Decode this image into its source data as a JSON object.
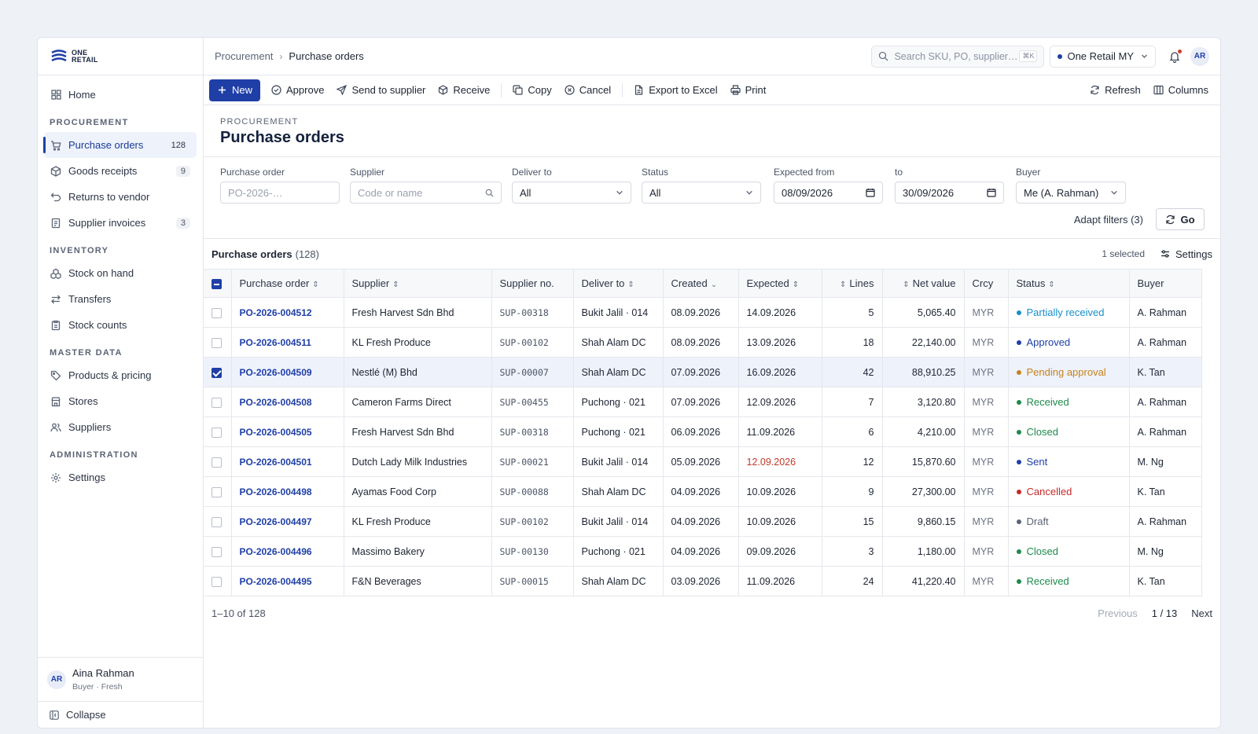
{
  "brand": {
    "line1": "ONE",
    "line2": "RETAIL"
  },
  "sidebar": {
    "home": "Home",
    "sections": {
      "procurement": "PROCUREMENT",
      "inventory": "INVENTORY",
      "master_data": "MASTER DATA",
      "administration": "ADMINISTRATION"
    },
    "items": {
      "purchase_orders": {
        "label": "Purchase orders",
        "badge": "128"
      },
      "goods_receipts": {
        "label": "Goods receipts",
        "badge": "9"
      },
      "returns": {
        "label": "Returns to vendor"
      },
      "supplier_invoices": {
        "label": "Supplier invoices",
        "badge": "3"
      },
      "stock_on_hand": {
        "label": "Stock on hand"
      },
      "transfers": {
        "label": "Transfers"
      },
      "stock_counts": {
        "label": "Stock counts"
      },
      "products": {
        "label": "Products & pricing"
      },
      "stores": {
        "label": "Stores"
      },
      "suppliers": {
        "label": "Suppliers"
      },
      "settings": {
        "label": "Settings"
      }
    },
    "user": {
      "initials": "AR",
      "name": "Aina Rahman",
      "role": "Buyer · Fresh"
    },
    "collapse": "Collapse"
  },
  "topbar": {
    "breadcrumb": [
      "Procurement",
      "Purchase orders"
    ],
    "search_placeholder": "Search SKU, PO, supplier…",
    "search_shortcut": "⌘K",
    "tenant": "One Retail MY",
    "avatar": "AR"
  },
  "toolbar": {
    "new": "New",
    "approve": "Approve",
    "send": "Send to supplier",
    "receive": "Receive",
    "copy": "Copy",
    "cancel": "Cancel",
    "export": "Export to Excel",
    "print": "Print",
    "refresh": "Refresh",
    "columns": "Columns"
  },
  "header": {
    "eyebrow": "PROCUREMENT",
    "title": "Purchase orders"
  },
  "filters": {
    "po_label": "Purchase order",
    "po_placeholder": "PO-2026-…",
    "supplier_label": "Supplier",
    "supplier_placeholder": "Code or name",
    "deliver_label": "Deliver to",
    "deliver_value": "All",
    "status_label": "Status",
    "status_value": "All",
    "from_label": "Expected from",
    "from_value": "08/09/2026",
    "to_label": "to",
    "to_value": "30/09/2026",
    "buyer_label": "Buyer",
    "buyer_value": "Me (A. Rahman)",
    "adapt": "Adapt filters (3)",
    "go": "Go"
  },
  "table": {
    "title": "Purchase orders",
    "count": "(128)",
    "selected": "1 selected",
    "settings": "Settings",
    "columns": [
      "Purchase order",
      "Supplier",
      "Supplier no.",
      "Deliver to",
      "Created",
      "Expected",
      "Lines",
      "Net value",
      "Crcy",
      "Status",
      "Buyer"
    ],
    "rows": [
      {
        "po": "PO-2026-004512",
        "supplier": "Fresh Harvest Sdn Bhd",
        "supno": "SUP-00318",
        "deliver": "Bukit Jalil · 014",
        "created": "08.09.2026",
        "expected": "14.09.2026",
        "lines": "5",
        "net": "5,065.40",
        "crcy": "MYR",
        "status": "Partially received",
        "status_color": "#1a8fc9",
        "buyer": "A. Rahman",
        "checked": false,
        "overdue": false
      },
      {
        "po": "PO-2026-004511",
        "supplier": "KL Fresh Produce",
        "supno": "SUP-00102",
        "deliver": "Shah Alam DC",
        "created": "08.09.2026",
        "expected": "13.09.2026",
        "lines": "18",
        "net": "22,140.00",
        "crcy": "MYR",
        "status": "Approved",
        "status_color": "#1f3fa6",
        "buyer": "A. Rahman",
        "checked": false,
        "overdue": false
      },
      {
        "po": "PO-2026-004509",
        "supplier": "Nestlé (M) Bhd",
        "supno": "SUP-00007",
        "deliver": "Shah Alam DC",
        "created": "07.09.2026",
        "expected": "16.09.2026",
        "lines": "42",
        "net": "88,910.25",
        "crcy": "MYR",
        "status": "Pending approval",
        "status_color": "#c9821a",
        "buyer": "K. Tan",
        "checked": true,
        "overdue": false
      },
      {
        "po": "PO-2026-004508",
        "supplier": "Cameron Farms Direct",
        "supno": "SUP-00455",
        "deliver": "Puchong · 021",
        "created": "07.09.2026",
        "expected": "12.09.2026",
        "lines": "7",
        "net": "3,120.80",
        "crcy": "MYR",
        "status": "Received",
        "status_color": "#1e8a4c",
        "buyer": "A. Rahman",
        "checked": false,
        "overdue": false
      },
      {
        "po": "PO-2026-004505",
        "supplier": "Fresh Harvest Sdn Bhd",
        "supno": "SUP-00318",
        "deliver": "Puchong · 021",
        "created": "06.09.2026",
        "expected": "11.09.2026",
        "lines": "6",
        "net": "4,210.00",
        "crcy": "MYR",
        "status": "Closed",
        "status_color": "#1e8a4c",
        "buyer": "A. Rahman",
        "checked": false,
        "overdue": false
      },
      {
        "po": "PO-2026-004501",
        "supplier": "Dutch Lady Milk Industries",
        "supno": "SUP-00021",
        "deliver": "Bukit Jalil · 014",
        "created": "05.09.2026",
        "expected": "12.09.2026",
        "lines": "12",
        "net": "15,870.60",
        "crcy": "MYR",
        "status": "Sent",
        "status_color": "#1f3fa6",
        "buyer": "M. Ng",
        "checked": false,
        "overdue": true
      },
      {
        "po": "PO-2026-004498",
        "supplier": "Ayamas Food Corp",
        "supno": "SUP-00088",
        "deliver": "Shah Alam DC",
        "created": "04.09.2026",
        "expected": "10.09.2026",
        "lines": "9",
        "net": "27,300.00",
        "crcy": "MYR",
        "status": "Cancelled",
        "status_color": "#c62828",
        "buyer": "K. Tan",
        "checked": false,
        "overdue": false
      },
      {
        "po": "PO-2026-004497",
        "supplier": "KL Fresh Produce",
        "supno": "SUP-00102",
        "deliver": "Bukit Jalil · 014",
        "created": "04.09.2026",
        "expected": "10.09.2026",
        "lines": "15",
        "net": "9,860.15",
        "crcy": "MYR",
        "status": "Draft",
        "status_color": "#5b6475",
        "buyer": "A. Rahman",
        "checked": false,
        "overdue": false
      },
      {
        "po": "PO-2026-004496",
        "supplier": "Massimo Bakery",
        "supno": "SUP-00130",
        "deliver": "Puchong · 021",
        "created": "04.09.2026",
        "expected": "09.09.2026",
        "lines": "3",
        "net": "1,180.00",
        "crcy": "MYR",
        "status": "Closed",
        "status_color": "#1e8a4c",
        "buyer": "M. Ng",
        "checked": false,
        "overdue": false
      },
      {
        "po": "PO-2026-004495",
        "supplier": "F&N Beverages",
        "supno": "SUP-00015",
        "deliver": "Shah Alam DC",
        "created": "03.09.2026",
        "expected": "11.09.2026",
        "lines": "24",
        "net": "41,220.40",
        "crcy": "MYR",
        "status": "Received",
        "status_color": "#1e8a4c",
        "buyer": "K. Tan",
        "checked": false,
        "overdue": false
      }
    ]
  },
  "footer": {
    "range": "1–10 of 128",
    "previous": "Previous",
    "page": "1 / 13",
    "next": "Next"
  }
}
